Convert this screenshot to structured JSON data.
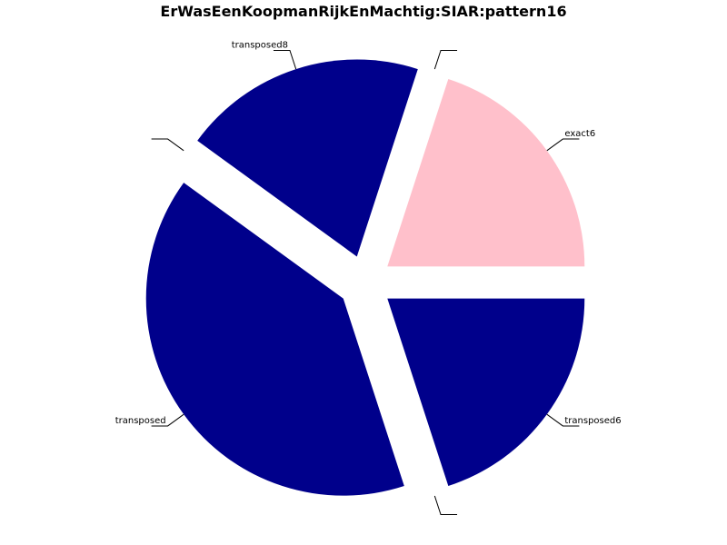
{
  "chart_data": {
    "type": "pie",
    "title": "ErWasEenKoopmanRijkEnMachtig:SIAR:pattern16",
    "slices": [
      {
        "label": "transposed6",
        "value": 20,
        "color": "#00008b"
      },
      {
        "label": "",
        "value": 0,
        "color": "#00008b"
      },
      {
        "label": "transposed",
        "value": 40,
        "color": "#00008b"
      },
      {
        "label": "",
        "value": 0,
        "color": "#00008b"
      },
      {
        "label": "transposed8",
        "value": 20,
        "color": "#00008b"
      },
      {
        "label": "",
        "value": 0,
        "color": "#00008b"
      },
      {
        "label": "exact6",
        "value": 20,
        "color": "#ffc0cb"
      }
    ],
    "legend": "none"
  }
}
